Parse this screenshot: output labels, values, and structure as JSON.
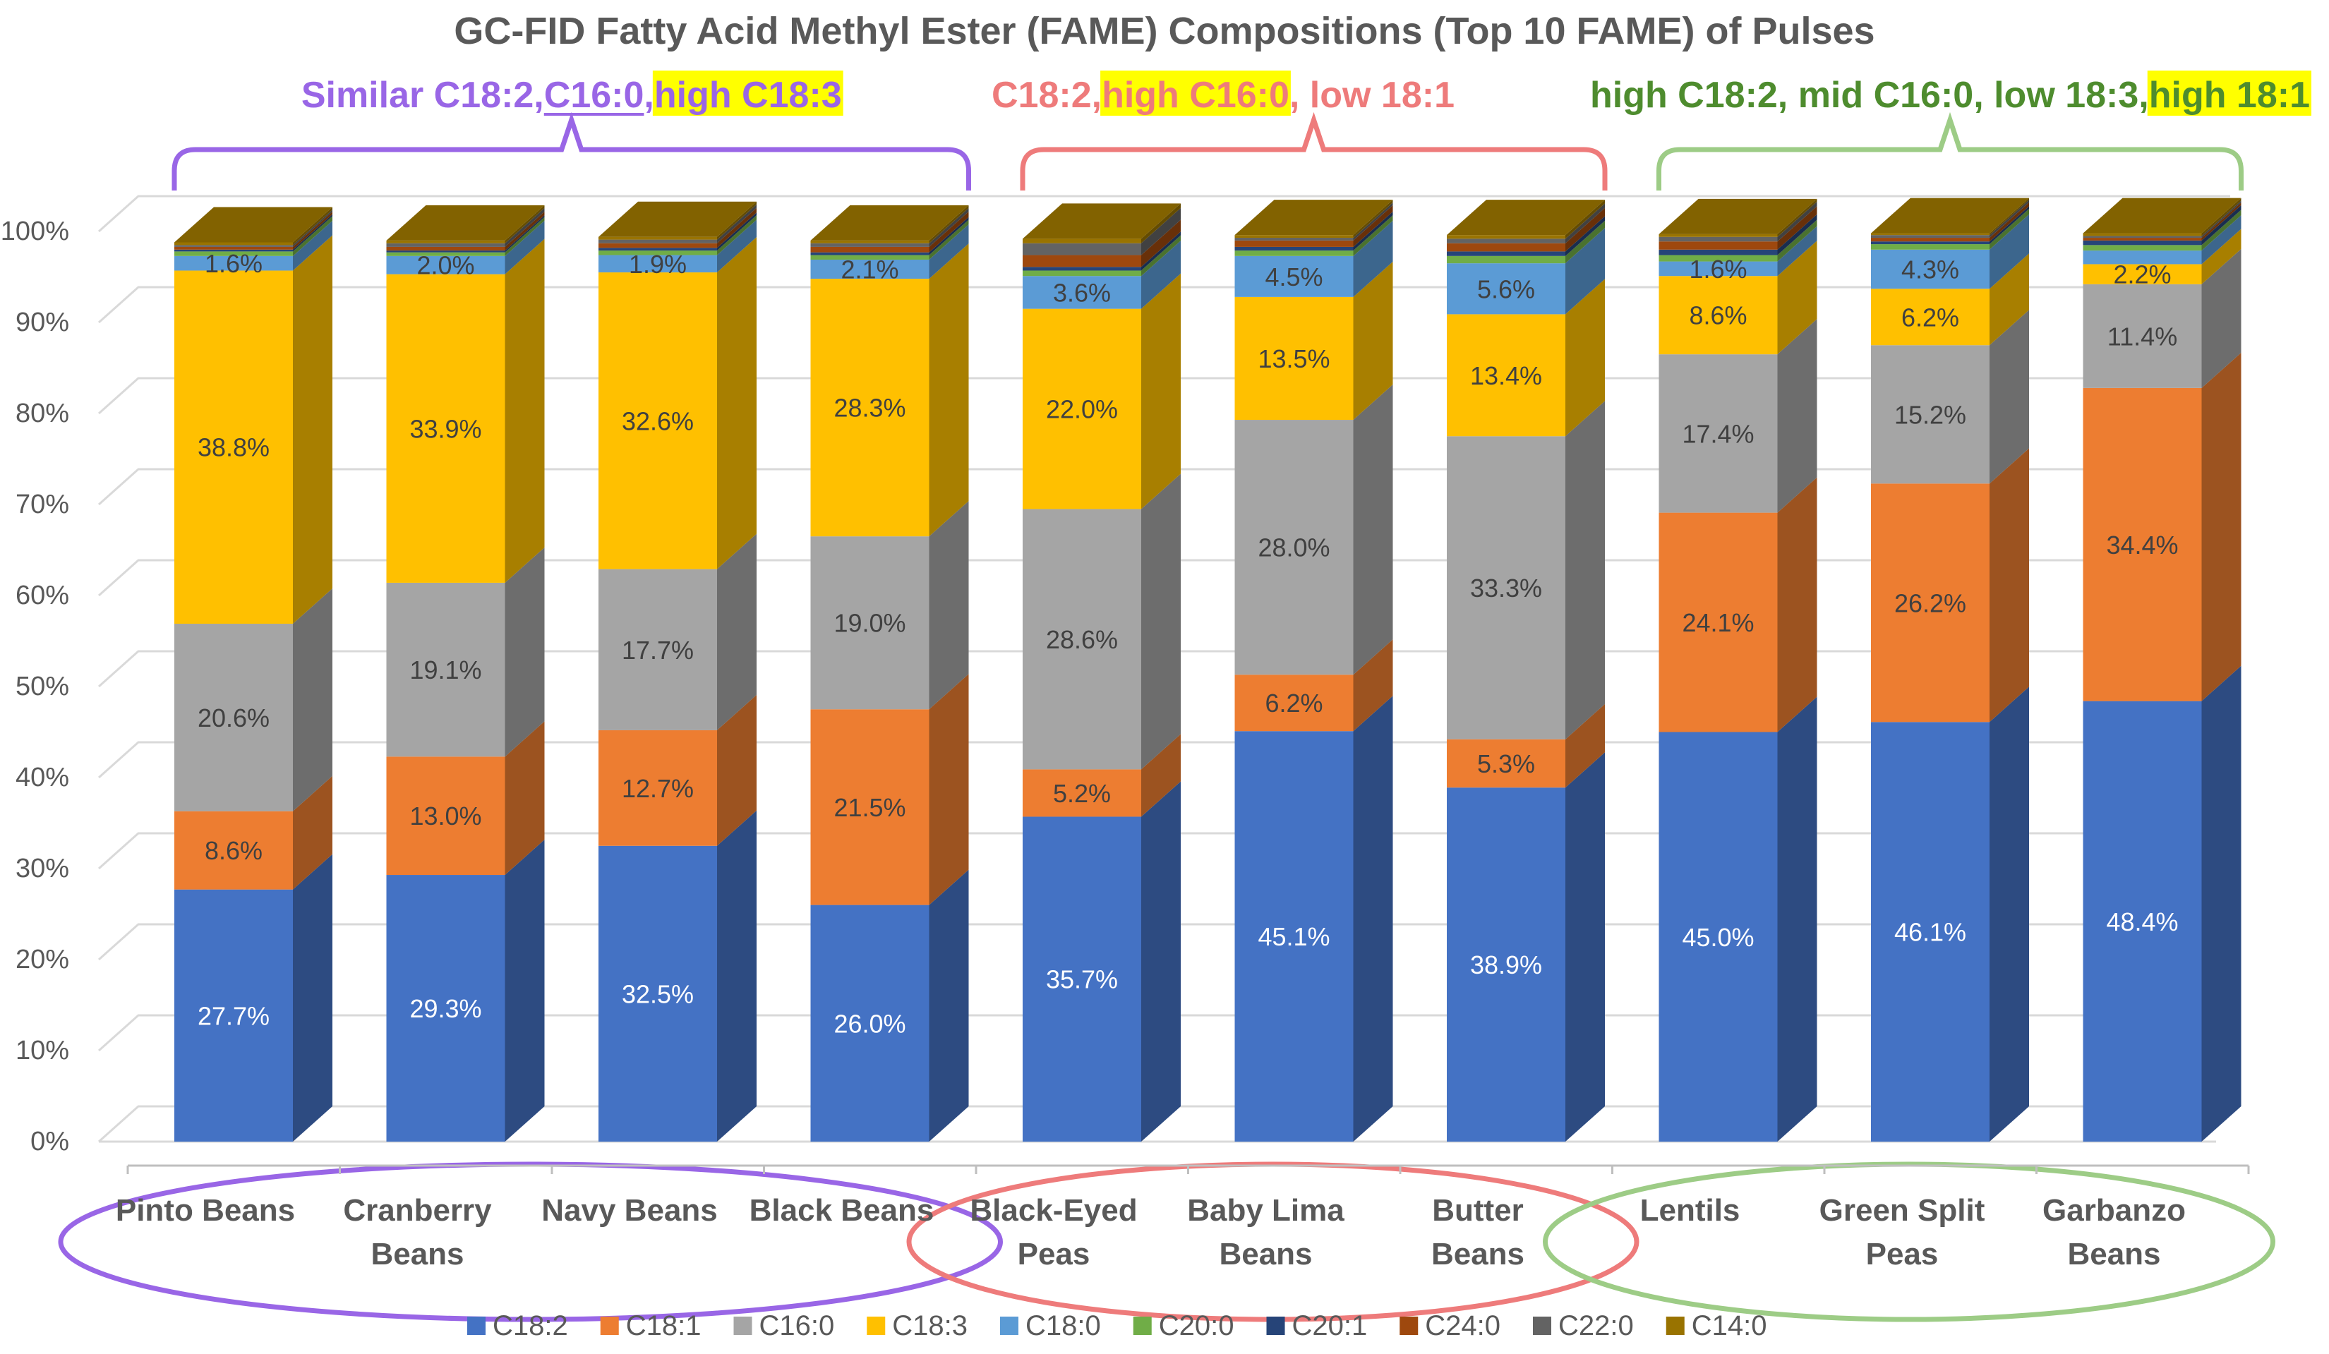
{
  "chart_data": {
    "type": "bar",
    "stacked": true,
    "style": "3d-column-100pct",
    "title": "GC-FID Fatty Acid Methyl Ester (FAME) Compositions (Top 10 FAME) of Pulses",
    "xlabel": "",
    "ylabel": "",
    "ylim": [
      0,
      100
    ],
    "yticks": [
      "0%",
      "10%",
      "20%",
      "30%",
      "40%",
      "50%",
      "60%",
      "70%",
      "80%",
      "90%",
      "100%"
    ],
    "grid": true,
    "legend_position": "bottom",
    "categories": [
      [
        "Pinto Beans"
      ],
      [
        "Cranberry",
        "Beans"
      ],
      [
        "Navy Beans"
      ],
      [
        "Black Beans"
      ],
      [
        "Black-Eyed",
        "Peas"
      ],
      [
        "Baby Lima",
        "Beans"
      ],
      [
        "Butter",
        "Beans"
      ],
      [
        "Lentils"
      ],
      [
        "Green Split",
        "Peas"
      ],
      [
        "Garbanzo",
        "Beans"
      ]
    ],
    "series": [
      {
        "name": "C18:2",
        "color": "#4472C4",
        "values": [
          27.7,
          29.3,
          32.5,
          26.0,
          35.7,
          45.1,
          38.9,
          45.0,
          46.1,
          48.4
        ],
        "show": [
          true,
          true,
          true,
          true,
          true,
          true,
          true,
          true,
          true,
          true
        ]
      },
      {
        "name": "C18:1",
        "color": "#ED7D31",
        "values": [
          8.6,
          13.0,
          12.7,
          21.5,
          5.2,
          6.2,
          5.3,
          24.1,
          26.2,
          34.4
        ],
        "show": [
          true,
          true,
          true,
          true,
          true,
          true,
          true,
          true,
          true,
          true
        ]
      },
      {
        "name": "C16:0",
        "color": "#A5A5A5",
        "values": [
          20.6,
          19.1,
          17.7,
          19.0,
          28.6,
          28.0,
          33.3,
          17.4,
          15.2,
          11.4
        ],
        "show": [
          true,
          true,
          true,
          true,
          true,
          true,
          true,
          true,
          true,
          true
        ]
      },
      {
        "name": "C18:3",
        "color": "#FFC000",
        "values": [
          38.8,
          33.9,
          32.6,
          28.3,
          22.0,
          13.5,
          13.4,
          8.6,
          6.2,
          2.2
        ],
        "show": [
          true,
          true,
          true,
          true,
          true,
          true,
          true,
          true,
          true,
          true
        ]
      },
      {
        "name": "C18:0",
        "color": "#5B9BD5",
        "values": [
          1.6,
          2.0,
          1.9,
          2.1,
          3.6,
          4.5,
          5.6,
          1.6,
          4.3,
          1.5
        ],
        "show": [
          true,
          true,
          true,
          true,
          true,
          true,
          true,
          true,
          true,
          false
        ]
      },
      {
        "name": "C20:0",
        "color": "#70AD47",
        "values": [
          0.5,
          0.4,
          0.5,
          0.5,
          0.6,
          0.6,
          0.8,
          0.7,
          0.6,
          0.6
        ],
        "show": [
          false,
          false,
          false,
          false,
          false,
          false,
          false,
          false,
          false,
          false
        ]
      },
      {
        "name": "C20:1",
        "color": "#264478",
        "values": [
          0.2,
          0.2,
          0.3,
          0.3,
          0.4,
          0.4,
          0.5,
          0.6,
          0.3,
          0.5
        ],
        "show": [
          false,
          false,
          false,
          false,
          false,
          false,
          false,
          false,
          false,
          false
        ]
      },
      {
        "name": "C24:0",
        "color": "#9E480E",
        "values": [
          0.3,
          0.4,
          0.5,
          0.6,
          1.3,
          0.7,
          0.9,
          0.9,
          0.4,
          0.3
        ],
        "show": [
          false,
          false,
          false,
          false,
          false,
          false,
          false,
          false,
          false,
          false
        ]
      },
      {
        "name": "C22:0",
        "color": "#636363",
        "values": [
          0.2,
          0.4,
          0.4,
          0.4,
          1.3,
          0.3,
          0.5,
          0.5,
          0.3,
          0.2
        ],
        "show": [
          false,
          false,
          false,
          false,
          false,
          false,
          false,
          false,
          false,
          false
        ]
      },
      {
        "name": "C14:0",
        "color": "#997300",
        "values": [
          0.3,
          0.3,
          0.3,
          0.3,
          0.5,
          0.3,
          0.4,
          0.3,
          0.2,
          0.3
        ],
        "show": [
          false,
          false,
          false,
          false,
          false,
          false,
          false,
          false,
          false,
          false
        ]
      }
    ],
    "annotations": {
      "groups": [
        {
          "name": "group-1",
          "color": "#9966E6",
          "first": 0,
          "last": 3,
          "label": [
            {
              "text": "Similar C18:2, "
            },
            {
              "text": "C16:0",
              "underline": true
            },
            {
              "text": ", "
            },
            {
              "text": "high C18:3",
              "highlight": "#FFFF00"
            }
          ]
        },
        {
          "name": "group-2",
          "color": "#EE7B7B",
          "first": 4,
          "last": 6,
          "label": [
            {
              "text": "C18:2, "
            },
            {
              "text": "high C16:0",
              "highlight": "#FFFF00"
            },
            {
              "text": ", low 18:1"
            }
          ]
        },
        {
          "name": "group-3",
          "color": "#4E8C2E",
          "bracket_color": "#9DCC86",
          "first": 7,
          "last": 9,
          "label": [
            {
              "text": "high C18:2, mid C16:0, low 18:3, "
            },
            {
              "text": "high 18:1",
              "highlight": "#FFFF00"
            }
          ]
        }
      ]
    }
  }
}
